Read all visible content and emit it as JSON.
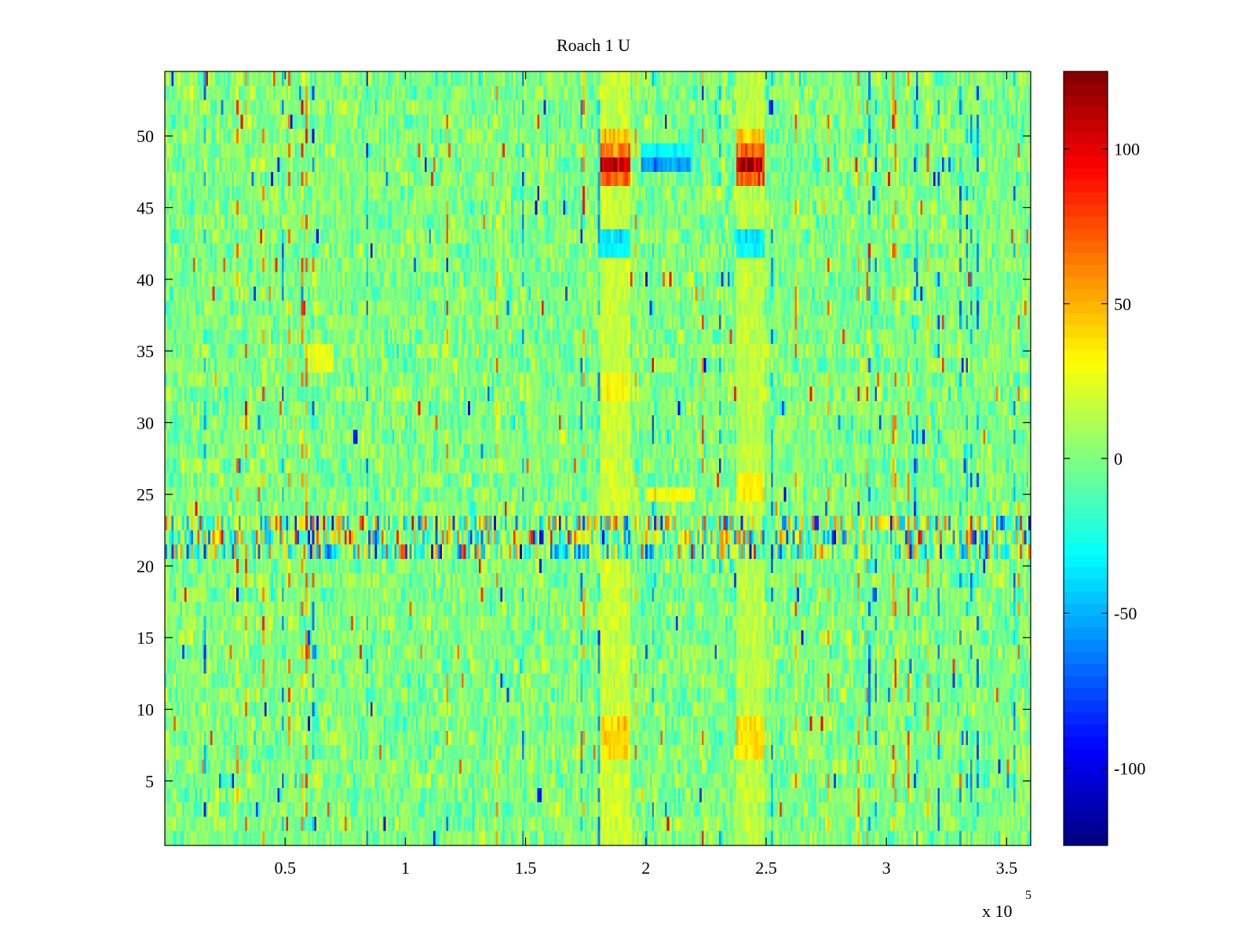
{
  "chart_data": {
    "type": "heatmap",
    "title": "Roach 1 U",
    "xlabel": "",
    "ylabel": "",
    "x_multiplier_label": "x 10",
    "x_multiplier_exponent": "5",
    "xlim": [
      0,
      360000
    ],
    "ylim": [
      0.5,
      54.5
    ],
    "rows": 54,
    "columns": 400,
    "x_ticks": [
      {
        "value": 50000,
        "label": "0.5"
      },
      {
        "value": 100000,
        "label": "1"
      },
      {
        "value": 150000,
        "label": "1.5"
      },
      {
        "value": 200000,
        "label": "2"
      },
      {
        "value": 250000,
        "label": "2.5"
      },
      {
        "value": 300000,
        "label": "3"
      },
      {
        "value": 350000,
        "label": "3.5"
      }
    ],
    "y_ticks": [
      {
        "value": 5,
        "label": "5"
      },
      {
        "value": 10,
        "label": "10"
      },
      {
        "value": 15,
        "label": "15"
      },
      {
        "value": 20,
        "label": "20"
      },
      {
        "value": 25,
        "label": "25"
      },
      {
        "value": 30,
        "label": "30"
      },
      {
        "value": 35,
        "label": "35"
      },
      {
        "value": 40,
        "label": "40"
      },
      {
        "value": 45,
        "label": "45"
      },
      {
        "value": 50,
        "label": "50"
      }
    ],
    "colorbar": {
      "colormap": "jet",
      "clim": [
        -125,
        125
      ],
      "ticks": [
        {
          "value": 100,
          "label": "100"
        },
        {
          "value": 50,
          "label": "50"
        },
        {
          "value": 0,
          "label": "0"
        },
        {
          "value": -50,
          "label": "-50"
        },
        {
          "value": -100,
          "label": "-100"
        }
      ]
    },
    "background_noise": {
      "mean": 0,
      "std": 12
    },
    "noisy_band": {
      "rows": [
        21,
        22,
        23
      ],
      "amplitude": 90
    },
    "features": [
      {
        "x_range": [
          181000,
          193000
        ],
        "rows": [
          48
        ],
        "value": 115
      },
      {
        "x_range": [
          181000,
          193000
        ],
        "rows": [
          47,
          49
        ],
        "value": 70
      },
      {
        "x_range": [
          181000,
          193000
        ],
        "rows": [
          50
        ],
        "value": 45
      },
      {
        "x_range": [
          238000,
          249000
        ],
        "rows": [
          48
        ],
        "value": 115
      },
      {
        "x_range": [
          238000,
          249000
        ],
        "rows": [
          47,
          49
        ],
        "value": 70
      },
      {
        "x_range": [
          238000,
          249000
        ],
        "rows": [
          50
        ],
        "value": 45
      },
      {
        "x_range": [
          198000,
          218000
        ],
        "rows": [
          48
        ],
        "value": -55
      },
      {
        "x_range": [
          198000,
          218000
        ],
        "rows": [
          49
        ],
        "value": -30
      },
      {
        "x_range": [
          181000,
          193000
        ],
        "rows": [
          42,
          43
        ],
        "value": -35
      },
      {
        "x_range": [
          238000,
          249000
        ],
        "rows": [
          42,
          43
        ],
        "value": -35
      },
      {
        "x_range": [
          181000,
          193000
        ],
        "rows": [
          7,
          8,
          9
        ],
        "value": 40
      },
      {
        "x_range": [
          238000,
          249000
        ],
        "rows": [
          7,
          8,
          9
        ],
        "value": 38
      },
      {
        "x_range": [
          181000,
          193000
        ],
        "rows": [
          32,
          33
        ],
        "value": 30
      },
      {
        "x_range": [
          238000,
          249000
        ],
        "rows": [
          25,
          26
        ],
        "value": 35
      },
      {
        "x_range": [
          181000,
          193000
        ],
        "rows": [
          1,
          2,
          3,
          4,
          5,
          6,
          10,
          11,
          12,
          13,
          14,
          15,
          16,
          17,
          18,
          19,
          20,
          24,
          25,
          26,
          27,
          28,
          29,
          30,
          31,
          34,
          35,
          36,
          37,
          38,
          39,
          40,
          41,
          44,
          45,
          46,
          51,
          52,
          53,
          54
        ],
        "value": 18
      },
      {
        "x_range": [
          238000,
          249000
        ],
        "rows": [
          1,
          2,
          3,
          4,
          5,
          6,
          10,
          11,
          12,
          13,
          14,
          15,
          16,
          17,
          18,
          19,
          20,
          24,
          27,
          28,
          29,
          30,
          31,
          32,
          33,
          34,
          35,
          36,
          37,
          38,
          39,
          40,
          41,
          44,
          45,
          46,
          51,
          52,
          53,
          54
        ],
        "value": 15
      },
      {
        "x_range": [
          60000,
          70000
        ],
        "rows": [
          34,
          35
        ],
        "value": 25
      },
      {
        "x_range": [
          200000,
          220000
        ],
        "rows": [
          25
        ],
        "value": 28
      }
    ]
  }
}
